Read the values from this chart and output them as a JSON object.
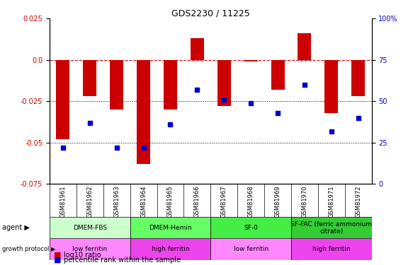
{
  "title": "GDS2230 / 11225",
  "samples": [
    "GSM81961",
    "GSM81962",
    "GSM81963",
    "GSM81964",
    "GSM81965",
    "GSM81966",
    "GSM81967",
    "GSM81968",
    "GSM81969",
    "GSM81970",
    "GSM81971",
    "GSM81972"
  ],
  "log10_ratio": [
    -0.048,
    -0.022,
    -0.03,
    -0.063,
    -0.03,
    0.013,
    -0.028,
    -0.001,
    -0.018,
    0.016,
    -0.032,
    -0.022
  ],
  "percentile_rank": [
    22,
    37,
    22,
    22,
    36,
    57,
    51,
    49,
    43,
    60,
    32,
    40
  ],
  "ylim_left": [
    -0.075,
    0.025
  ],
  "ylim_right": [
    0,
    100
  ],
  "yticks_left": [
    -0.075,
    -0.05,
    -0.025,
    0.0,
    0.025
  ],
  "yticks_right": [
    0,
    25,
    50,
    75,
    100
  ],
  "bar_color": "#cc0000",
  "dot_color": "#0000cc",
  "hline_color": "#cc0000",
  "hline_style": "--",
  "dotline_color": "#000080",
  "agent_groups": [
    {
      "label": "DMEM-FBS",
      "start": 0,
      "end": 3,
      "color": "#ccffcc"
    },
    {
      "label": "DMEM-Hemin",
      "start": 3,
      "end": 6,
      "color": "#66ff66"
    },
    {
      "label": "SF-0",
      "start": 6,
      "end": 9,
      "color": "#44ee44"
    },
    {
      "label": "SF-FAC (ferric ammonium\ncitrate)",
      "start": 9,
      "end": 12,
      "color": "#33cc33"
    }
  ],
  "protocol_groups": [
    {
      "label": "low ferritin",
      "start": 0,
      "end": 3,
      "color": "#ff88ff"
    },
    {
      "label": "high ferritin",
      "start": 3,
      "end": 6,
      "color": "#ee44ee"
    },
    {
      "label": "low ferritin",
      "start": 6,
      "end": 9,
      "color": "#ff88ff"
    },
    {
      "label": "high ferritin",
      "start": 9,
      "end": 12,
      "color": "#ee44ee"
    }
  ],
  "legend_items": [
    {
      "color": "#cc0000",
      "label": "log10 ratio"
    },
    {
      "color": "#0000cc",
      "label": "percentile rank within the sample"
    }
  ]
}
